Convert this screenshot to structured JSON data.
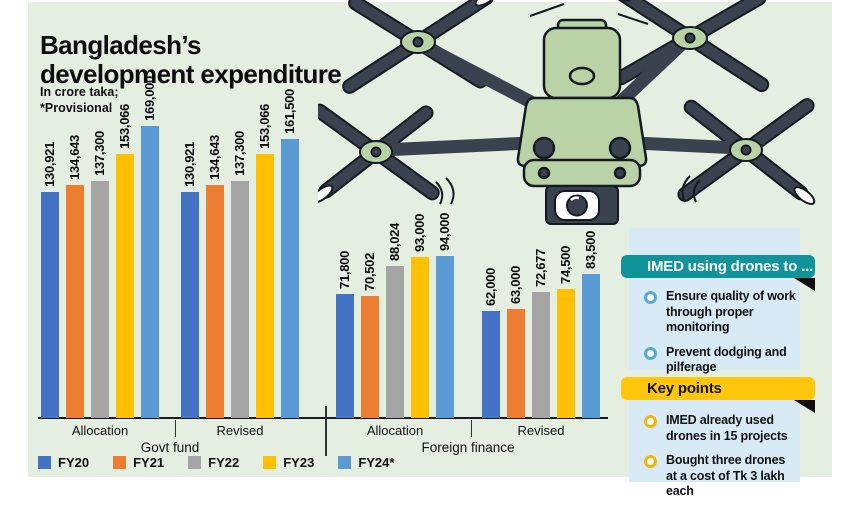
{
  "title": "Bangladesh’s development expenditure",
  "subtitle": "In crore taka;\n*Provisional",
  "background_color": "#e4eee1",
  "chart_data": {
    "type": "bar",
    "title": "Bangladesh’s development expenditure",
    "unit_note": "In crore taka; *Provisional",
    "categories": [
      "Allocation",
      "Revised",
      "Allocation",
      "Revised"
    ],
    "section_labels": [
      "Govt fund",
      "Foreign finance"
    ],
    "series": [
      {
        "name": "FY20",
        "color": "#4472c4",
        "values": [
          130921,
          130921,
          71800,
          62000
        ]
      },
      {
        "name": "FY21",
        "color": "#ed7d31",
        "values": [
          134643,
          134643,
          70502,
          63000
        ]
      },
      {
        "name": "FY22",
        "color": "#a5a5a5",
        "values": [
          137300,
          137300,
          88024,
          72677
        ]
      },
      {
        "name": "FY23",
        "color": "#ffc000",
        "values": [
          153066,
          153066,
          93000,
          74500
        ]
      },
      {
        "name": "FY24*",
        "color": "#5b9bd5",
        "values": [
          169000,
          161500,
          94000,
          83500
        ]
      }
    ],
    "ylim": [
      0,
      169000
    ],
    "value_labels": true,
    "grid": false,
    "legend_position": "bottom-left"
  },
  "panels": {
    "imed": {
      "header": "IMED using drones to ...",
      "header_color": "#109399",
      "items": [
        "Ensure quality of work through proper monitoring",
        "Prevent dodging and pilferage"
      ]
    },
    "key_points": {
      "header": "Key points",
      "header_color": "#ffc60a",
      "items": [
        {
          "pre": "IMED already used drones in ",
          "bold": "15",
          "post": " projects"
        },
        {
          "pre": "Bought three drones at a cost of Tk ",
          "bold": "3",
          "post": " lakh each"
        }
      ]
    },
    "panel_bg": "#d9eaf7"
  }
}
